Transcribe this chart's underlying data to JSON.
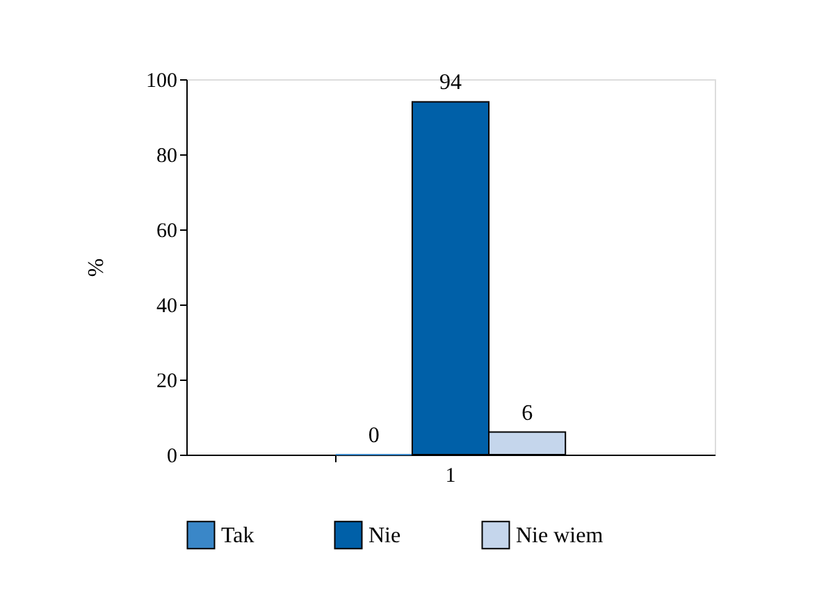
{
  "chart_data": {
    "type": "bar",
    "categories": [
      "1"
    ],
    "ylabel": "%",
    "ylim": [
      0,
      100
    ],
    "yticks": [
      0,
      20,
      40,
      60,
      80,
      100
    ],
    "grid": false,
    "legend": "bottom",
    "data_labels": true,
    "series": [
      {
        "name": "Tak",
        "color": "#3a87c8",
        "values": [
          0
        ]
      },
      {
        "name": "Nie",
        "color": "#0060a8",
        "values": [
          94
        ]
      },
      {
        "name": "Nie wiem",
        "color": "#c5d6ec",
        "values": [
          6
        ]
      }
    ]
  }
}
